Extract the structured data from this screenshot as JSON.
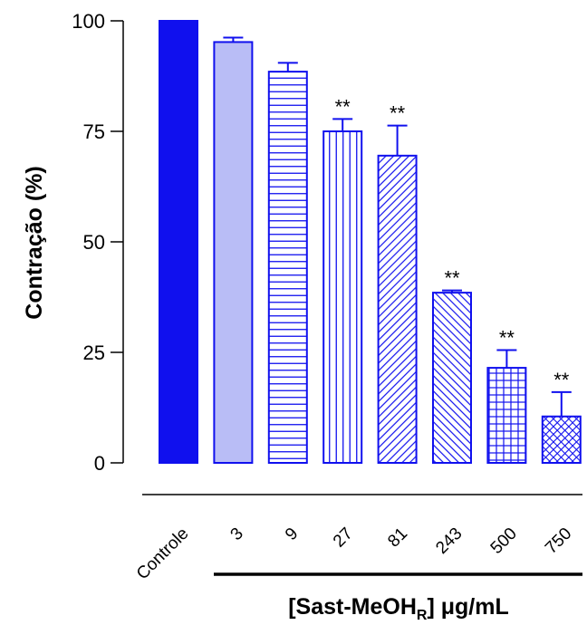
{
  "chart_data": {
    "type": "bar",
    "title": "",
    "ylabel": "Contração (%)",
    "xlabel_prefix": "[Sast-MeOH",
    "xlabel_subscript": "R",
    "xlabel_suffix": "] μg/mL",
    "ylim": [
      0,
      100
    ],
    "yticks": [
      "0",
      "25",
      "50",
      "75",
      "100"
    ],
    "categories": [
      "Controle",
      "3",
      "9",
      "27",
      "81",
      "243",
      "500",
      "750"
    ],
    "values": [
      100,
      95.2,
      88.5,
      75.0,
      69.5,
      38.5,
      21.5,
      10.5
    ],
    "errors": [
      0,
      1.0,
      2.0,
      2.8,
      6.8,
      0.5,
      4.0,
      5.5
    ],
    "significance": [
      "",
      "",
      "",
      "**",
      "**",
      "**",
      "**",
      "**"
    ],
    "fills": [
      "solid",
      "light",
      "horizontal",
      "vertical",
      "diag-back",
      "diag-fwd",
      "grid",
      "crosshatch"
    ],
    "colors": {
      "bar": "#1010ee",
      "light_fill": "#b9bdf6",
      "axis": "#000000"
    }
  }
}
